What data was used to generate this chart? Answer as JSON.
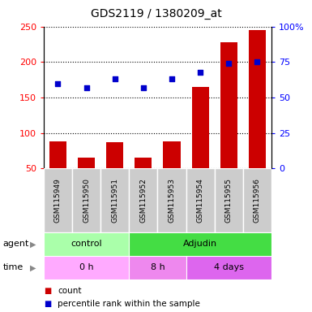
{
  "title": "GDS2119 / 1380209_at",
  "samples": [
    "GSM115949",
    "GSM115950",
    "GSM115951",
    "GSM115952",
    "GSM115953",
    "GSM115954",
    "GSM115955",
    "GSM115956"
  ],
  "counts": [
    88,
    65,
    87,
    65,
    88,
    165,
    228,
    245
  ],
  "percentile_ranks": [
    60,
    57,
    63,
    57,
    63,
    68,
    74,
    75
  ],
  "left_ylim": [
    50,
    250
  ],
  "left_yticks": [
    50,
    100,
    150,
    200,
    250
  ],
  "right_ylim": [
    0,
    100
  ],
  "right_yticks": [
    0,
    25,
    50,
    75,
    100
  ],
  "right_yticklabels": [
    "0",
    "25",
    "50",
    "75",
    "100%"
  ],
  "bar_color": "#cc0000",
  "dot_color": "#0000cc",
  "bar_width": 0.6,
  "agent_groups": [
    {
      "label": "control",
      "start": 0,
      "end": 3,
      "color": "#aaffaa"
    },
    {
      "label": "Adjudin",
      "start": 3,
      "end": 8,
      "color": "#44dd44"
    }
  ],
  "time_groups": [
    {
      "label": "0 h",
      "start": 0,
      "end": 3,
      "color": "#ffaaff"
    },
    {
      "label": "8 h",
      "start": 3,
      "end": 5,
      "color": "#ee88ee"
    },
    {
      "label": "4 days",
      "start": 5,
      "end": 8,
      "color": "#dd66ee"
    }
  ],
  "legend_count_color": "#cc0000",
  "legend_dot_color": "#0000cc"
}
